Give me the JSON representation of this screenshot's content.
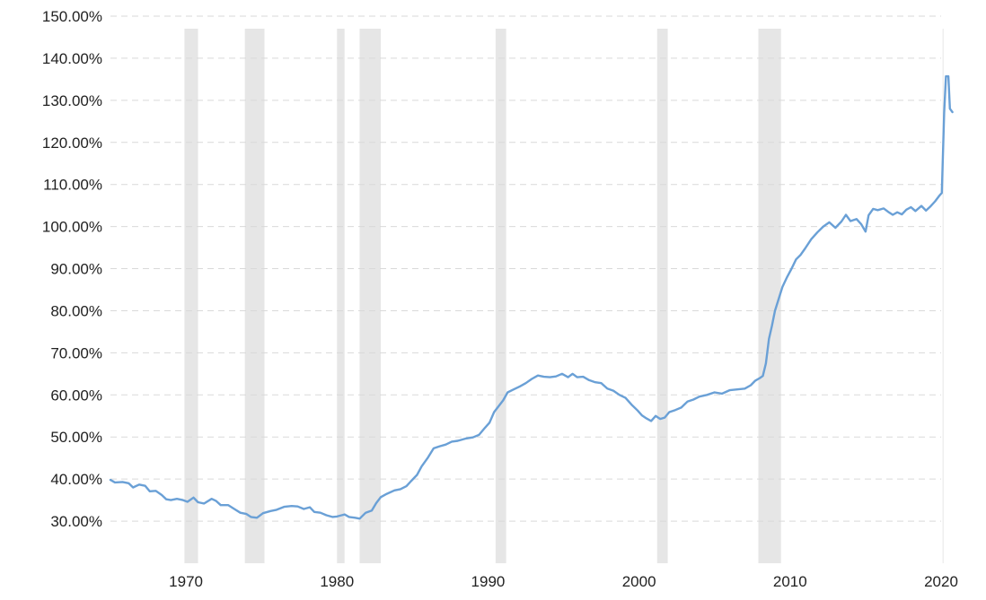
{
  "chart_data": {
    "type": "line",
    "title": "",
    "xlabel": "",
    "ylabel": "",
    "x_range": [
      1965.0,
      2020.0
    ],
    "ylim": [
      20,
      150
    ],
    "y_ticks": [
      30,
      40,
      50,
      60,
      70,
      80,
      90,
      100,
      110,
      120,
      130,
      140,
      150
    ],
    "y_tick_labels": [
      "30.00%",
      "40.00%",
      "50.00%",
      "60.00%",
      "70.00%",
      "80.00%",
      "90.00%",
      "100.00%",
      "110.00%",
      "120.00%",
      "130.00%",
      "140.00%",
      "150.00%"
    ],
    "x_ticks": [
      1970,
      1980,
      1990,
      2000,
      2010,
      2020
    ],
    "x_tick_labels": [
      "1970",
      "1980",
      "1990",
      "2000",
      "2010",
      "2020"
    ],
    "grid": true,
    "legend": "none",
    "colors": {
      "line": "#6aa0d6",
      "recession": "#e6e6e6",
      "grid": "#d9d9d9"
    },
    "recessions": [
      [
        1969.9,
        1970.8
      ],
      [
        1973.9,
        1975.2
      ],
      [
        1980.0,
        1980.5
      ],
      [
        1981.5,
        1982.9
      ],
      [
        1990.5,
        1991.2
      ],
      [
        2001.2,
        2001.9
      ],
      [
        2007.9,
        2009.4
      ],
      [
        2020.1,
        2020.6
      ]
    ],
    "series": [
      {
        "values": [
          [
            1965.0,
            39.8
          ],
          [
            1965.3,
            39.2
          ],
          [
            1965.8,
            39.3
          ],
          [
            1966.2,
            39.0
          ],
          [
            1966.5,
            38.0
          ],
          [
            1966.9,
            38.7
          ],
          [
            1967.3,
            38.4
          ],
          [
            1967.6,
            37.1
          ],
          [
            1968.0,
            37.2
          ],
          [
            1968.4,
            36.2
          ],
          [
            1968.7,
            35.2
          ],
          [
            1969.0,
            35.0
          ],
          [
            1969.4,
            35.3
          ],
          [
            1969.8,
            35.0
          ],
          [
            1970.1,
            34.6
          ],
          [
            1970.5,
            35.6
          ],
          [
            1970.8,
            34.5
          ],
          [
            1971.2,
            34.2
          ],
          [
            1971.7,
            35.3
          ],
          [
            1972.0,
            34.8
          ],
          [
            1972.3,
            33.8
          ],
          [
            1972.8,
            33.8
          ],
          [
            1973.2,
            32.9
          ],
          [
            1973.6,
            32.0
          ],
          [
            1974.0,
            31.7
          ],
          [
            1974.3,
            31.0
          ],
          [
            1974.7,
            30.8
          ],
          [
            1975.1,
            31.9
          ],
          [
            1975.6,
            32.4
          ],
          [
            1976.0,
            32.7
          ],
          [
            1976.5,
            33.4
          ],
          [
            1977.0,
            33.6
          ],
          [
            1977.4,
            33.5
          ],
          [
            1977.8,
            32.9
          ],
          [
            1978.2,
            33.3
          ],
          [
            1978.5,
            32.2
          ],
          [
            1978.9,
            32.0
          ],
          [
            1979.3,
            31.4
          ],
          [
            1979.7,
            31.0
          ],
          [
            1980.0,
            31.1
          ],
          [
            1980.5,
            31.6
          ],
          [
            1980.8,
            31.0
          ],
          [
            1981.2,
            30.8
          ],
          [
            1981.5,
            30.6
          ],
          [
            1981.9,
            32.0
          ],
          [
            1982.3,
            32.5
          ],
          [
            1982.6,
            34.3
          ],
          [
            1982.9,
            35.7
          ],
          [
            1983.3,
            36.5
          ],
          [
            1983.8,
            37.3
          ],
          [
            1984.2,
            37.6
          ],
          [
            1984.6,
            38.3
          ],
          [
            1984.9,
            39.5
          ],
          [
            1985.3,
            41.0
          ],
          [
            1985.6,
            43.0
          ],
          [
            1986.0,
            45.0
          ],
          [
            1986.4,
            47.3
          ],
          [
            1986.8,
            47.8
          ],
          [
            1987.2,
            48.2
          ],
          [
            1987.6,
            48.9
          ],
          [
            1988.0,
            49.1
          ],
          [
            1988.5,
            49.6
          ],
          [
            1989.0,
            49.9
          ],
          [
            1989.4,
            50.5
          ],
          [
            1989.8,
            52.2
          ],
          [
            1990.1,
            53.4
          ],
          [
            1990.4,
            55.9
          ],
          [
            1990.7,
            57.3
          ],
          [
            1991.0,
            58.7
          ],
          [
            1991.3,
            60.6
          ],
          [
            1991.7,
            61.3
          ],
          [
            1992.1,
            62.0
          ],
          [
            1992.5,
            62.8
          ],
          [
            1992.9,
            63.8
          ],
          [
            1993.3,
            64.6
          ],
          [
            1993.7,
            64.3
          ],
          [
            1994.1,
            64.2
          ],
          [
            1994.5,
            64.4
          ],
          [
            1994.9,
            65.0
          ],
          [
            1995.3,
            64.2
          ],
          [
            1995.6,
            65.0
          ],
          [
            1995.9,
            64.2
          ],
          [
            1996.3,
            64.3
          ],
          [
            1996.7,
            63.5
          ],
          [
            1997.1,
            63.0
          ],
          [
            1997.5,
            62.8
          ],
          [
            1997.9,
            61.5
          ],
          [
            1998.3,
            61.0
          ],
          [
            1998.7,
            60.0
          ],
          [
            1999.1,
            59.3
          ],
          [
            1999.5,
            57.7
          ],
          [
            1999.9,
            56.3
          ],
          [
            2000.2,
            55.1
          ],
          [
            2000.5,
            54.4
          ],
          [
            2000.8,
            53.8
          ],
          [
            2001.1,
            55.0
          ],
          [
            2001.4,
            54.3
          ],
          [
            2001.7,
            54.6
          ],
          [
            2002.0,
            55.9
          ],
          [
            2002.4,
            56.4
          ],
          [
            2002.8,
            57.0
          ],
          [
            2003.2,
            58.4
          ],
          [
            2003.6,
            58.9
          ],
          [
            2004.0,
            59.6
          ],
          [
            2004.5,
            60.0
          ],
          [
            2005.0,
            60.6
          ],
          [
            2005.5,
            60.3
          ],
          [
            2006.0,
            61.1
          ],
          [
            2006.5,
            61.3
          ],
          [
            2007.0,
            61.5
          ],
          [
            2007.4,
            62.3
          ],
          [
            2007.7,
            63.4
          ],
          [
            2008.0,
            64.0
          ],
          [
            2008.2,
            64.5
          ],
          [
            2008.4,
            67.5
          ],
          [
            2008.6,
            73.3
          ],
          [
            2008.8,
            76.4
          ],
          [
            2009.0,
            80.0
          ],
          [
            2009.3,
            83.4
          ],
          [
            2009.5,
            85.7
          ],
          [
            2009.8,
            88.0
          ],
          [
            2010.1,
            90.0
          ],
          [
            2010.4,
            92.2
          ],
          [
            2010.7,
            93.3
          ],
          [
            2011.0,
            94.8
          ],
          [
            2011.4,
            97.0
          ],
          [
            2011.8,
            98.6
          ],
          [
            2012.2,
            100.0
          ],
          [
            2012.6,
            101.0
          ],
          [
            2013.0,
            99.7
          ],
          [
            2013.4,
            101.2
          ],
          [
            2013.7,
            102.8
          ],
          [
            2014.0,
            101.3
          ],
          [
            2014.4,
            101.8
          ],
          [
            2014.7,
            100.6
          ],
          [
            2015.0,
            98.8
          ],
          [
            2015.2,
            102.7
          ],
          [
            2015.5,
            104.2
          ],
          [
            2015.8,
            103.9
          ],
          [
            2016.2,
            104.3
          ],
          [
            2016.5,
            103.5
          ],
          [
            2016.8,
            102.8
          ],
          [
            2017.1,
            103.4
          ],
          [
            2017.4,
            102.9
          ],
          [
            2017.7,
            104.0
          ],
          [
            2018.0,
            104.6
          ],
          [
            2018.3,
            103.7
          ],
          [
            2018.7,
            104.9
          ],
          [
            2019.0,
            103.8
          ],
          [
            2019.3,
            104.8
          ],
          [
            2019.6,
            106.0
          ],
          [
            2019.9,
            107.4
          ],
          [
            2020.05,
            108.0
          ],
          [
            2020.2,
            127.0
          ],
          [
            2020.32,
            135.7
          ],
          [
            2020.48,
            135.7
          ],
          [
            2020.58,
            128.0
          ],
          [
            2020.75,
            127.2
          ]
        ]
      }
    ]
  }
}
